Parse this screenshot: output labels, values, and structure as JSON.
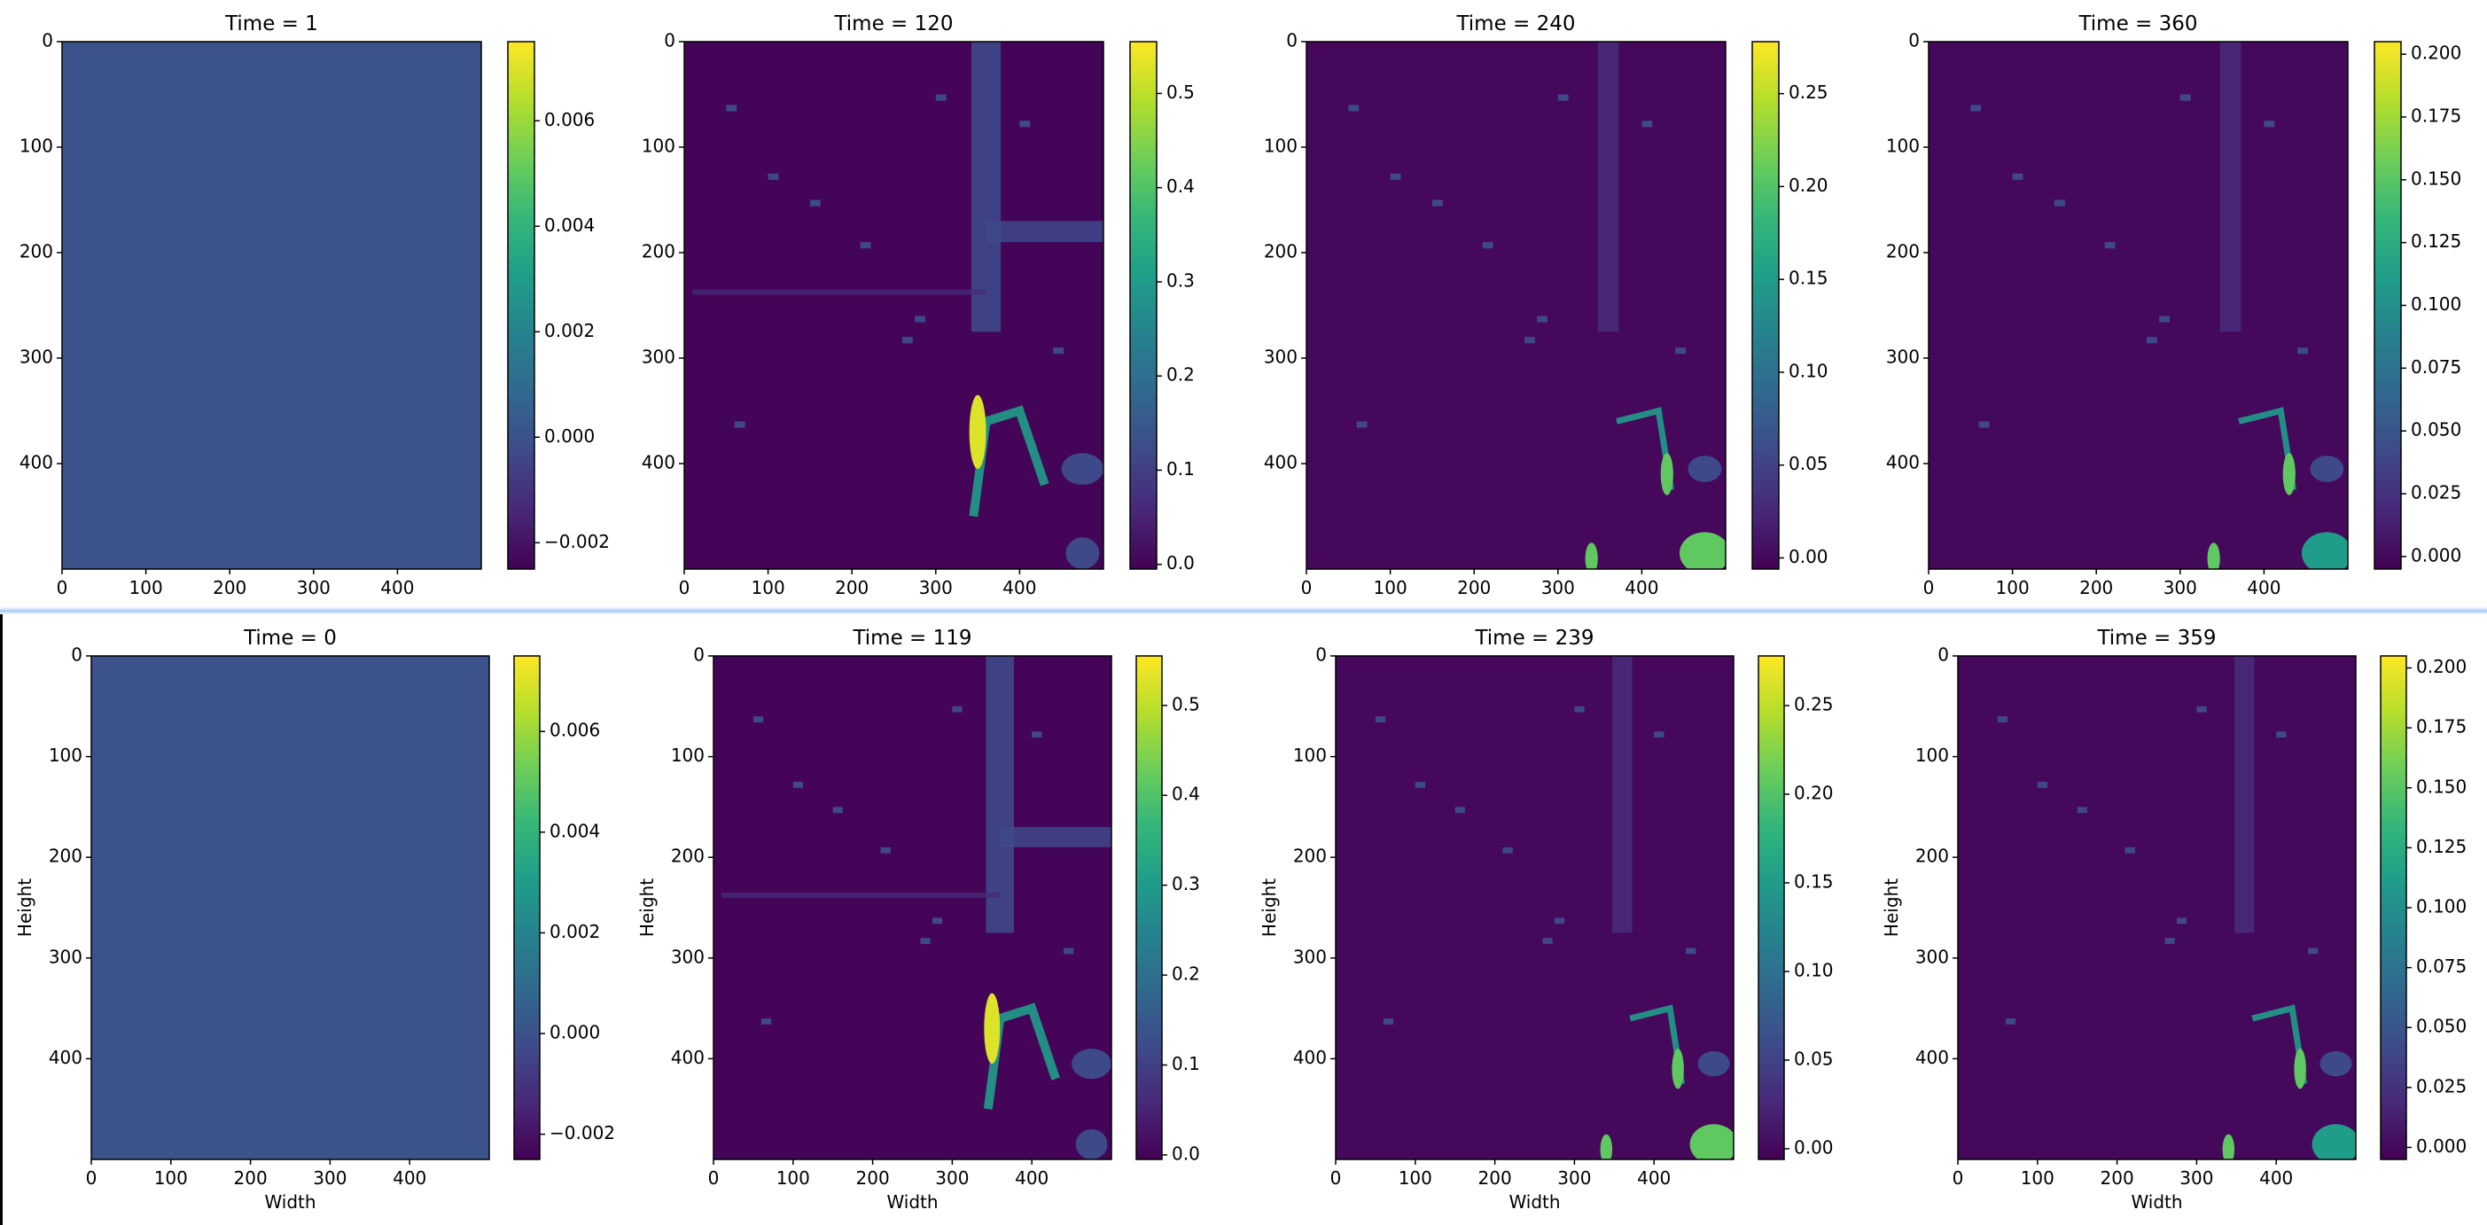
{
  "chart_data": [
    {
      "type": "heatmap",
      "title": "Time = 1",
      "xlabel": "",
      "ylabel": "",
      "xticks": [
        "0",
        "100",
        "200",
        "300",
        "400"
      ],
      "yticks": [
        "0",
        "100",
        "200",
        "300",
        "400"
      ],
      "grid_size": [
        500,
        500
      ],
      "colormap": "viridis",
      "colorbar_range": [
        -0.0025,
        0.0075
      ],
      "colorbar_ticks": [
        "0.006",
        "0.004",
        "0.002",
        "0.000",
        "−0.002"
      ],
      "base_value": 0.0
    },
    {
      "type": "heatmap",
      "title": "Time = 120",
      "xlabel": "",
      "ylabel": "",
      "xticks": [
        "0",
        "100",
        "200",
        "300",
        "400"
      ],
      "yticks": [
        "0",
        "100",
        "200",
        "300",
        "400"
      ],
      "grid_size": [
        500,
        500
      ],
      "colormap": "viridis",
      "colorbar_range": [
        -0.005,
        0.555
      ],
      "colorbar_ticks": [
        "0.5",
        "0.4",
        "0.3",
        "0.2",
        "0.1",
        "0.0"
      ],
      "base_value": 0.0
    },
    {
      "type": "heatmap",
      "title": "Time = 240",
      "xlabel": "",
      "ylabel": "",
      "xticks": [
        "0",
        "100",
        "200",
        "300",
        "400"
      ],
      "yticks": [
        "0",
        "100",
        "200",
        "300",
        "400"
      ],
      "grid_size": [
        500,
        500
      ],
      "colormap": "viridis",
      "colorbar_range": [
        -0.006,
        0.278
      ],
      "colorbar_ticks": [
        "0.25",
        "0.20",
        "0.15",
        "0.10",
        "0.05",
        "0.00"
      ],
      "base_value": 0.0
    },
    {
      "type": "heatmap",
      "title": "Time = 360",
      "xlabel": "",
      "ylabel": "",
      "xticks": [
        "0",
        "100",
        "200",
        "300",
        "400"
      ],
      "yticks": [
        "0",
        "100",
        "200",
        "300",
        "400"
      ],
      "grid_size": [
        500,
        500
      ],
      "colormap": "viridis",
      "colorbar_range": [
        -0.005,
        0.205
      ],
      "colorbar_ticks": [
        "0.200",
        "0.175",
        "0.150",
        "0.125",
        "0.100",
        "0.075",
        "0.050",
        "0.025",
        "0.000"
      ],
      "base_value": 0.0
    },
    {
      "type": "heatmap",
      "title": "Time = 0",
      "xlabel": "Width",
      "ylabel": "Height",
      "xticks": [
        "0",
        "100",
        "200",
        "300",
        "400"
      ],
      "yticks": [
        "0",
        "100",
        "200",
        "300",
        "400"
      ],
      "grid_size": [
        500,
        500
      ],
      "colormap": "viridis",
      "colorbar_range": [
        -0.0025,
        0.0075
      ],
      "colorbar_ticks": [
        "0.006",
        "0.004",
        "0.002",
        "0.000",
        "−0.002"
      ],
      "base_value": 0.0
    },
    {
      "type": "heatmap",
      "title": "Time = 119",
      "xlabel": "Width",
      "ylabel": "Height",
      "xticks": [
        "0",
        "100",
        "200",
        "300",
        "400"
      ],
      "yticks": [
        "0",
        "100",
        "200",
        "300",
        "400"
      ],
      "grid_size": [
        500,
        500
      ],
      "colormap": "viridis",
      "colorbar_range": [
        -0.005,
        0.555
      ],
      "colorbar_ticks": [
        "0.5",
        "0.4",
        "0.3",
        "0.2",
        "0.1",
        "0.0"
      ],
      "base_value": 0.0
    },
    {
      "type": "heatmap",
      "title": "Time = 239",
      "xlabel": "Width",
      "ylabel": "Height",
      "xticks": [
        "0",
        "100",
        "200",
        "300",
        "400"
      ],
      "yticks": [
        "0",
        "100",
        "200",
        "300",
        "400"
      ],
      "grid_size": [
        500,
        500
      ],
      "colormap": "viridis",
      "colorbar_range": [
        -0.006,
        0.278
      ],
      "colorbar_ticks": [
        "0.25",
        "0.20",
        "0.15",
        "0.10",
        "0.05",
        "0.00"
      ],
      "base_value": 0.0
    },
    {
      "type": "heatmap",
      "title": "Time = 359",
      "xlabel": "Width",
      "ylabel": "Height",
      "xticks": [
        "0",
        "100",
        "200",
        "300",
        "400"
      ],
      "yticks": [
        "0",
        "100",
        "200",
        "300",
        "400"
      ],
      "grid_size": [
        500,
        500
      ],
      "colormap": "viridis",
      "colorbar_range": [
        -0.005,
        0.205
      ],
      "colorbar_ticks": [
        "0.200",
        "0.175",
        "0.150",
        "0.125",
        "0.100",
        "0.075",
        "0.050",
        "0.025",
        "0.000"
      ],
      "base_value": 0.0
    }
  ]
}
